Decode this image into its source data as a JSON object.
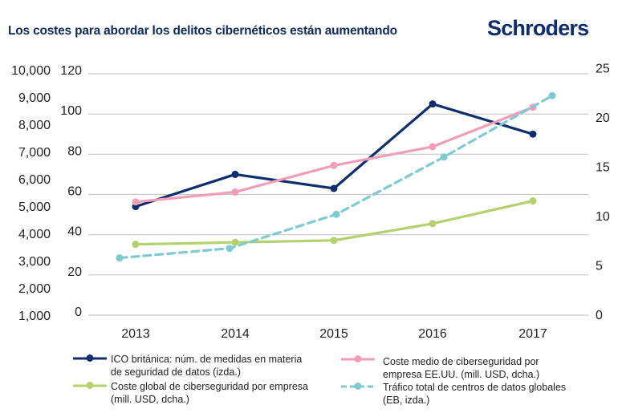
{
  "header": {
    "title": "Los costes para abordar los delitos cibernéticos están aumentando",
    "logo": "Schroders"
  },
  "chart_data": {
    "type": "line",
    "title": "Los costes para abordar los delitos cibernéticos están aumentando",
    "categories": [
      "2013",
      "2014",
      "2015",
      "2016",
      "2017"
    ],
    "axes": {
      "left_outer": {
        "ticks": [
          "1,000",
          "2,000",
          "3,000",
          "4,000",
          "5,000",
          "6,000",
          "7,000",
          "8,000",
          "9,000",
          "10,000"
        ],
        "range": [
          1000,
          10000
        ]
      },
      "left_inner": {
        "ticks": [
          "0",
          "20",
          "40",
          "60",
          "80",
          "100",
          "120"
        ],
        "range": [
          0,
          120
        ]
      },
      "right": {
        "ticks": [
          "0",
          "5",
          "10",
          "15",
          "20",
          "25"
        ],
        "range": [
          0,
          25
        ]
      }
    },
    "grid": true,
    "legend_position": "bottom",
    "series": [
      {
        "name": "ICO británica: núm. de medidas en materia de seguridad de datos (izda.)",
        "axis": "left_inner",
        "color": "#0d2d6c",
        "style": "solid",
        "values": [
          54,
          70,
          63,
          105,
          90
        ]
      },
      {
        "name": "Coste medio  de ciberseguridad por empresa EE.UU. (mill. USD, dcha.)",
        "axis": "right",
        "color": "#f09ebb",
        "style": "solid",
        "values": [
          11.4,
          12.4,
          15.1,
          17.0,
          21.0
        ]
      },
      {
        "name": "Coste global de ciberseguridad por empresa (mill. USD, dcha.)",
        "axis": "right",
        "color": "#b5d16e",
        "style": "solid",
        "values": [
          7.1,
          7.3,
          7.5,
          9.2,
          11.5
        ]
      },
      {
        "name": "Tráfico total de centros de datos globales (EB, izda.)",
        "axis": "left_outer",
        "color": "#7ecad1",
        "style": "dashed",
        "values": [
          3100,
          3450,
          4700,
          6800,
          9050
        ]
      }
    ]
  },
  "legend": [
    {
      "text": "ICO británica: núm. de medidas en materia\nde seguridad de datos (izda.)"
    },
    {
      "text": "Coste medio  de ciberseguridad por\nempresa EE.UU. (mill. USD, dcha.)"
    },
    {
      "text": "Coste global de ciberseguridad por empresa\n(mill. USD, dcha.)"
    },
    {
      "text": "Tráfico total de centros de datos globales\n(EB, izda.)"
    }
  ]
}
